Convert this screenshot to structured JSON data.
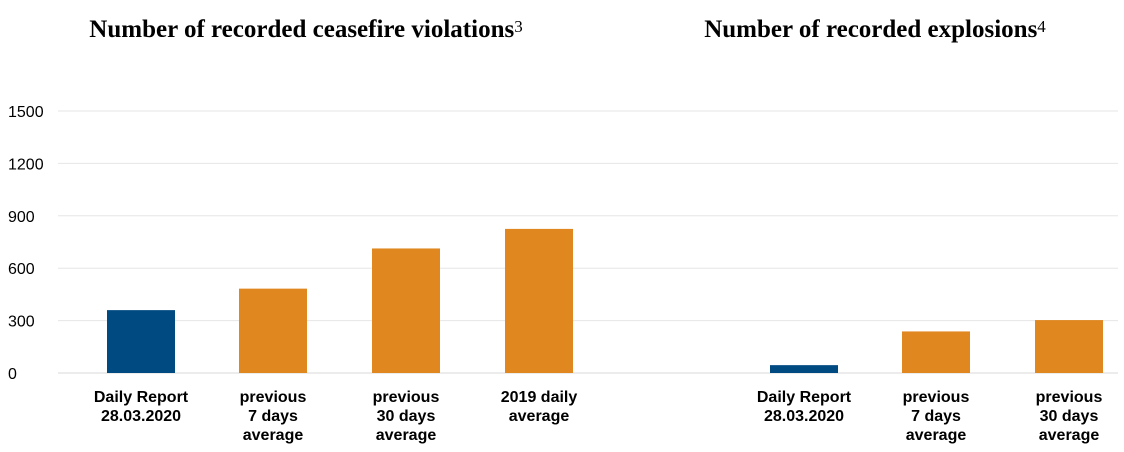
{
  "colors": {
    "highlight": "#004a82",
    "comparison": "#e08720",
    "grid": "#e6e6e6"
  },
  "chart_data": [
    {
      "type": "bar",
      "title": "Number of recorded ceasefire violations",
      "title_superscript": "3",
      "categories": [
        [
          "Daily Report",
          "28.03.2020"
        ],
        [
          "previous",
          "7 days",
          "average"
        ],
        [
          "previous",
          "30 days",
          "average"
        ],
        [
          "2019 daily",
          "average"
        ]
      ],
      "values": [
        360,
        483,
        713,
        825
      ],
      "bar_colors": [
        "highlight",
        "comparison",
        "comparison",
        "comparison"
      ],
      "ylim": [
        0,
        1500
      ],
      "yticks": [
        0,
        300,
        600,
        900,
        1200,
        1500
      ],
      "grid": true,
      "xlabel": "",
      "ylabel": ""
    },
    {
      "type": "bar",
      "title": "Number of recorded explosions",
      "title_superscript": "4",
      "categories": [
        [
          "Daily Report",
          "28.03.2020"
        ],
        [
          "previous",
          "7 days",
          "average"
        ],
        [
          "previous",
          "30 days",
          "average"
        ]
      ],
      "values": [
        45,
        238,
        303
      ],
      "bar_colors": [
        "highlight",
        "comparison",
        "comparison"
      ],
      "ylim": [
        0,
        1500
      ],
      "yticks": [
        0,
        300,
        600,
        900,
        1200,
        1500
      ],
      "grid": true,
      "xlabel": "",
      "ylabel": ""
    }
  ]
}
